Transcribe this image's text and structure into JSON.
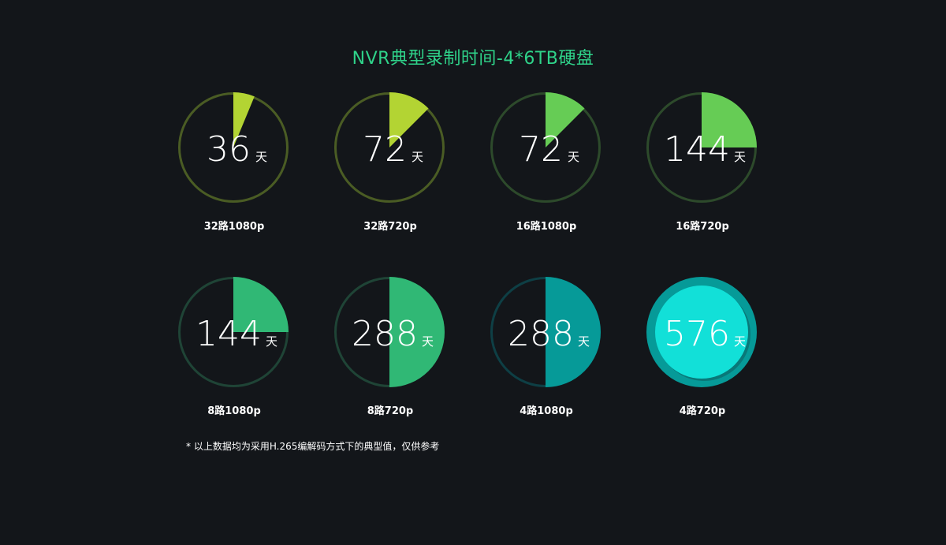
{
  "title": "NVR典型录制时间-4*6TB硬盘",
  "footnote": "* 以上数据均为采用H.265编解码方式下的典型值，仅供参考",
  "chart_data": {
    "type": "pie",
    "title": "NVR典型录制时间-4*6TB硬盘",
    "unit": "天",
    "max_value": 576,
    "items": [
      {
        "label": "32路1080p",
        "value": 36,
        "color": "#b3d433",
        "track": "#4a5c24"
      },
      {
        "label": "32路720p",
        "value": 72,
        "color": "#b3d433",
        "track": "#4a5c24"
      },
      {
        "label": "16路1080p",
        "value": 72,
        "color": "#66cc55",
        "track": "#2d4a2b"
      },
      {
        "label": "16路720p",
        "value": 144,
        "color": "#66cc55",
        "track": "#2d4a2b"
      },
      {
        "label": "8路1080p",
        "value": 144,
        "color": "#30b875",
        "track": "#1f4436"
      },
      {
        "label": "8路720p",
        "value": 288,
        "color": "#30b875",
        "track": "#1f4436"
      },
      {
        "label": "4路1080p",
        "value": 288,
        "color": "#069a98",
        "track": "#0e3f45"
      },
      {
        "label": "4路720p",
        "value": 576,
        "color": "#12e0d8",
        "track": "#069a98"
      }
    ]
  }
}
